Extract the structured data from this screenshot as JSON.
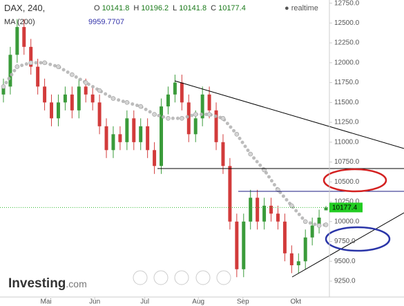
{
  "chart_data": {
    "type": "candlestick",
    "title": "DAX, 240,",
    "ohlc_labels": {
      "open": "O",
      "high": "H",
      "low": "L",
      "close": "C"
    },
    "status": "realtime",
    "x": [
      0,
      1,
      2,
      3,
      4,
      5,
      6,
      7,
      8,
      9,
      10,
      11,
      12,
      13,
      14,
      15,
      16,
      17,
      18,
      19,
      20,
      21,
      22,
      23,
      24,
      25,
      26,
      27,
      28,
      29,
      30,
      31,
      32,
      33,
      34,
      35,
      36,
      37,
      38,
      39,
      40,
      41,
      42,
      43,
      44,
      45,
      46,
      47
    ],
    "open": [
      11600,
      11700,
      12100,
      12450,
      12200,
      11950,
      11700,
      11500,
      11300,
      11500,
      11600,
      11400,
      11700,
      11600,
      11500,
      11200,
      10900,
      11100,
      11000,
      11300,
      11000,
      11200,
      10900,
      10700,
      11450,
      11600,
      11750,
      11500,
      11100,
      11300,
      11600,
      11400,
      11000,
      10700,
      10000,
      9400,
      10000,
      10300,
      10000,
      10200,
      10100,
      10000,
      9600,
      9450,
      9500,
      9800,
      9950,
      10141.8
    ],
    "high": [
      11800,
      12200,
      12550,
      12550,
      12300,
      12050,
      11800,
      11600,
      11600,
      11700,
      11700,
      11800,
      11800,
      11700,
      11600,
      11300,
      11200,
      11200,
      11400,
      11400,
      11300,
      11300,
      11000,
      11550,
      11700,
      11850,
      11850,
      11600,
      11400,
      11700,
      11700,
      11500,
      11100,
      10800,
      10100,
      10100,
      10400,
      10400,
      10300,
      10300,
      10200,
      10100,
      9700,
      9600,
      9900,
      10050,
      10150,
      10196.2
    ],
    "low": [
      11500,
      11600,
      12000,
      12100,
      11850,
      11600,
      11400,
      11200,
      11200,
      11400,
      11300,
      11300,
      11500,
      11400,
      11100,
      10800,
      10800,
      10900,
      10900,
      10900,
      10900,
      10800,
      10600,
      10600,
      11350,
      11500,
      11400,
      11000,
      11000,
      11200,
      11300,
      10900,
      10600,
      9900,
      9300,
      9300,
      9900,
      9900,
      9900,
      10000,
      9900,
      9500,
      9350,
      9350,
      9400,
      9700,
      9850,
      10141.8
    ],
    "close": [
      11700,
      12100,
      12450,
      12200,
      11950,
      11700,
      11500,
      11300,
      11500,
      11600,
      11400,
      11700,
      11600,
      11500,
      11200,
      10900,
      11100,
      11000,
      11300,
      11000,
      11200,
      10900,
      10700,
      11450,
      11600,
      11750,
      11500,
      11100,
      11300,
      11600,
      11400,
      11000,
      10700,
      10000,
      9400,
      10000,
      10300,
      10000,
      10200,
      10100,
      10000,
      9600,
      9450,
      9500,
      9800,
      9950,
      10050,
      10177.4
    ],
    "up_color": "#3a9b3a",
    "down_color": "#d23b3b",
    "ma": {
      "name": "MA (200)",
      "color": "#b5b5b5",
      "value_color": "#3333aa",
      "x": [
        0,
        2,
        4,
        6,
        8,
        10,
        12,
        14,
        16,
        18,
        20,
        22,
        24,
        26,
        28,
        30,
        32,
        34,
        36,
        38,
        40,
        42,
        44,
        46,
        47
      ],
      "values": [
        11700,
        11950,
        12000,
        12000,
        11950,
        11850,
        11750,
        11650,
        11550,
        11500,
        11450,
        11350,
        11300,
        11300,
        11350,
        11350,
        11300,
        11100,
        10850,
        10650,
        10400,
        10200,
        10000,
        9950,
        9959.7707
      ]
    },
    "xlim": [
      -0.5,
      47.5
    ],
    "xticks": [
      {
        "value": 6.2,
        "label": "Mai"
      },
      {
        "value": 13.3,
        "label": "Jun"
      },
      {
        "value": 20.6,
        "label": "Jul"
      },
      {
        "value": 28.4,
        "label": "Aug"
      },
      {
        "value": 34.9,
        "label": "Sep"
      },
      {
        "value": 42.6,
        "label": "Okt"
      }
    ],
    "ylim": [
      9050,
      12790
    ],
    "yticks": [
      {
        "value": 9250,
        "label": "9250.0"
      },
      {
        "value": 9500,
        "label": "9500.0"
      },
      {
        "value": 9750,
        "label": "9750.0"
      },
      {
        "value": 10000,
        "label": "10000.0"
      },
      {
        "value": 10250,
        "label": "10250.0"
      },
      {
        "value": 10500,
        "label": "10500.0"
      },
      {
        "value": 10750,
        "label": "10750.0"
      },
      {
        "value": 11000,
        "label": "11000.0"
      },
      {
        "value": 11250,
        "label": "11250.0"
      },
      {
        "value": 11500,
        "label": "11500.0"
      },
      {
        "value": 11750,
        "label": "11750.0"
      },
      {
        "value": 12000,
        "label": "12000.0"
      },
      {
        "value": 12250,
        "label": "12250.0"
      },
      {
        "value": 12500,
        "label": "12500.0"
      },
      {
        "value": 12750,
        "label": "12750.0"
      }
    ],
    "grid": true,
    "logo": {
      "brand": "Investing",
      "suffix": ".com"
    }
  }
}
